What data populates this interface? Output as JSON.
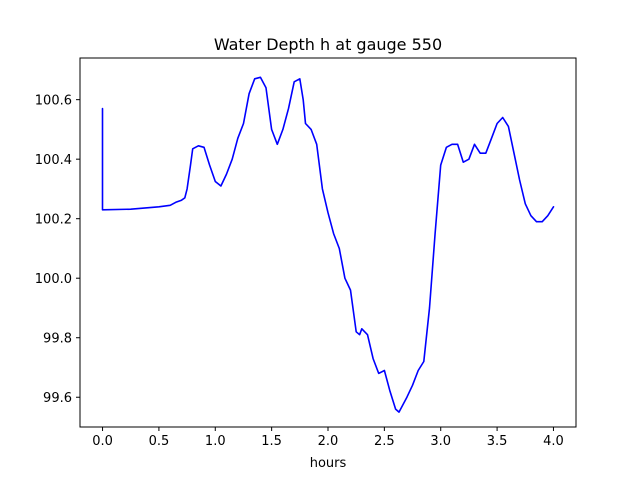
{
  "chart_data": {
    "type": "line",
    "title": "Water Depth h at gauge 550",
    "xlabel": "hours",
    "ylabel": "",
    "xlim": [
      -0.2,
      4.2
    ],
    "ylim": [
      99.5,
      100.74
    ],
    "xticks": [
      0.0,
      0.5,
      1.0,
      1.5,
      2.0,
      2.5,
      3.0,
      3.5,
      4.0
    ],
    "xtick_labels": [
      "0.0",
      "0.5",
      "1.0",
      "1.5",
      "2.0",
      "2.5",
      "3.0",
      "3.5",
      "4.0"
    ],
    "yticks": [
      99.6,
      99.8,
      100.0,
      100.2,
      100.4,
      100.6
    ],
    "ytick_labels": [
      "99.6",
      "99.8",
      "100.0",
      "100.2",
      "100.4",
      "100.6"
    ],
    "grid": false,
    "series": [
      {
        "color": "#0000ff",
        "x": [
          0.0,
          0.0,
          0.0,
          0.25,
          0.5,
          0.6,
          0.65,
          0.7,
          0.73,
          0.75,
          0.78,
          0.8,
          0.85,
          0.9,
          0.95,
          1.0,
          1.05,
          1.1,
          1.15,
          1.2,
          1.25,
          1.3,
          1.35,
          1.4,
          1.45,
          1.5,
          1.55,
          1.6,
          1.65,
          1.7,
          1.75,
          1.78,
          1.8,
          1.85,
          1.9,
          1.95,
          2.0,
          2.05,
          2.1,
          2.15,
          2.2,
          2.25,
          2.28,
          2.3,
          2.35,
          2.4,
          2.45,
          2.5,
          2.55,
          2.6,
          2.63,
          2.7,
          2.75,
          2.8,
          2.85,
          2.9,
          2.95,
          3.0,
          3.05,
          3.1,
          3.15,
          3.2,
          3.25,
          3.3,
          3.35,
          3.4,
          3.45,
          3.5,
          3.55,
          3.6,
          3.65,
          3.7,
          3.75,
          3.8,
          3.85,
          3.9,
          3.95,
          4.0
        ],
        "y": [
          100.57,
          100.23,
          100.23,
          100.232,
          100.24,
          100.245,
          100.255,
          100.262,
          100.27,
          100.3,
          100.38,
          100.435,
          100.445,
          100.44,
          100.38,
          100.325,
          100.31,
          100.35,
          100.4,
          100.47,
          100.52,
          100.62,
          100.67,
          100.675,
          100.64,
          100.5,
          100.45,
          100.5,
          100.57,
          100.66,
          100.67,
          100.6,
          100.52,
          100.5,
          100.45,
          100.3,
          100.22,
          100.15,
          100.1,
          100.0,
          99.96,
          99.82,
          99.81,
          99.83,
          99.81,
          99.73,
          99.68,
          99.69,
          99.62,
          99.56,
          99.55,
          99.6,
          99.64,
          99.69,
          99.72,
          99.9,
          100.15,
          100.38,
          100.44,
          100.45,
          100.45,
          100.39,
          100.4,
          100.45,
          100.42,
          100.42,
          100.47,
          100.52,
          100.54,
          100.51,
          100.42,
          100.33,
          100.25,
          100.21,
          100.19,
          100.19,
          100.21,
          100.24
        ]
      }
    ]
  }
}
